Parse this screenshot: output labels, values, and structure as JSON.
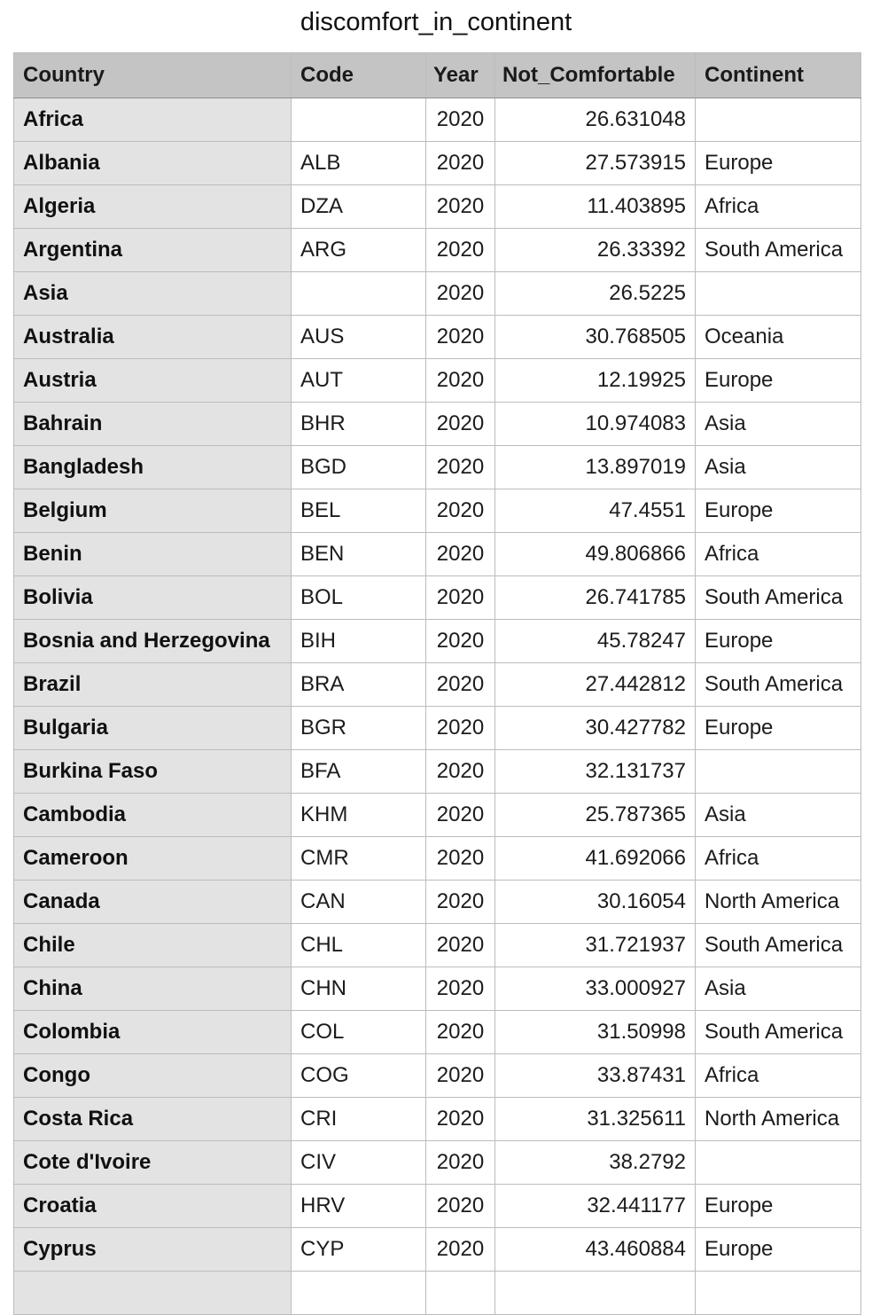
{
  "title": "discomfort_in_continent",
  "table": {
    "columns": [
      "Country",
      "Code",
      "Year",
      "Not_Comfortable",
      "Continent"
    ],
    "rows": [
      {
        "country": "Africa",
        "code": "",
        "year": "2020",
        "not_comfortable": "26.631048",
        "continent": ""
      },
      {
        "country": "Albania",
        "code": "ALB",
        "year": "2020",
        "not_comfortable": "27.573915",
        "continent": "Europe"
      },
      {
        "country": "Algeria",
        "code": "DZA",
        "year": "2020",
        "not_comfortable": "11.403895",
        "continent": "Africa"
      },
      {
        "country": "Argentina",
        "code": "ARG",
        "year": "2020",
        "not_comfortable": "26.33392",
        "continent": "South America"
      },
      {
        "country": "Asia",
        "code": "",
        "year": "2020",
        "not_comfortable": "26.5225",
        "continent": ""
      },
      {
        "country": "Australia",
        "code": "AUS",
        "year": "2020",
        "not_comfortable": "30.768505",
        "continent": "Oceania"
      },
      {
        "country": "Austria",
        "code": "AUT",
        "year": "2020",
        "not_comfortable": "12.19925",
        "continent": "Europe"
      },
      {
        "country": "Bahrain",
        "code": "BHR",
        "year": "2020",
        "not_comfortable": "10.974083",
        "continent": "Asia"
      },
      {
        "country": "Bangladesh",
        "code": "BGD",
        "year": "2020",
        "not_comfortable": "13.897019",
        "continent": "Asia"
      },
      {
        "country": "Belgium",
        "code": "BEL",
        "year": "2020",
        "not_comfortable": "47.4551",
        "continent": "Europe"
      },
      {
        "country": "Benin",
        "code": "BEN",
        "year": "2020",
        "not_comfortable": "49.806866",
        "continent": "Africa"
      },
      {
        "country": "Bolivia",
        "code": "BOL",
        "year": "2020",
        "not_comfortable": "26.741785",
        "continent": "South America"
      },
      {
        "country": "Bosnia and Herzegovina",
        "code": "BIH",
        "year": "2020",
        "not_comfortable": "45.78247",
        "continent": "Europe"
      },
      {
        "country": "Brazil",
        "code": "BRA",
        "year": "2020",
        "not_comfortable": "27.442812",
        "continent": "South America"
      },
      {
        "country": "Bulgaria",
        "code": "BGR",
        "year": "2020",
        "not_comfortable": "30.427782",
        "continent": "Europe"
      },
      {
        "country": "Burkina Faso",
        "code": "BFA",
        "year": "2020",
        "not_comfortable": "32.131737",
        "continent": ""
      },
      {
        "country": "Cambodia",
        "code": "KHM",
        "year": "2020",
        "not_comfortable": "25.787365",
        "continent": "Asia"
      },
      {
        "country": "Cameroon",
        "code": "CMR",
        "year": "2020",
        "not_comfortable": "41.692066",
        "continent": "Africa"
      },
      {
        "country": "Canada",
        "code": "CAN",
        "year": "2020",
        "not_comfortable": "30.16054",
        "continent": "North America"
      },
      {
        "country": "Chile",
        "code": "CHL",
        "year": "2020",
        "not_comfortable": "31.721937",
        "continent": "South America"
      },
      {
        "country": "China",
        "code": "CHN",
        "year": "2020",
        "not_comfortable": "33.000927",
        "continent": "Asia"
      },
      {
        "country": "Colombia",
        "code": "COL",
        "year": "2020",
        "not_comfortable": "31.50998",
        "continent": "South America"
      },
      {
        "country": "Congo",
        "code": "COG",
        "year": "2020",
        "not_comfortable": "33.87431",
        "continent": "Africa"
      },
      {
        "country": "Costa Rica",
        "code": "CRI",
        "year": "2020",
        "not_comfortable": "31.325611",
        "continent": "North America"
      },
      {
        "country": "Cote d'Ivoire",
        "code": "CIV",
        "year": "2020",
        "not_comfortable": "38.2792",
        "continent": ""
      },
      {
        "country": "Croatia",
        "code": "HRV",
        "year": "2020",
        "not_comfortable": "32.441177",
        "continent": "Europe"
      },
      {
        "country": "Cyprus",
        "code": "CYP",
        "year": "2020",
        "not_comfortable": "43.460884",
        "continent": "Europe"
      },
      {
        "country": "",
        "code": "",
        "year": "",
        "not_comfortable": "",
        "continent": ""
      }
    ]
  }
}
